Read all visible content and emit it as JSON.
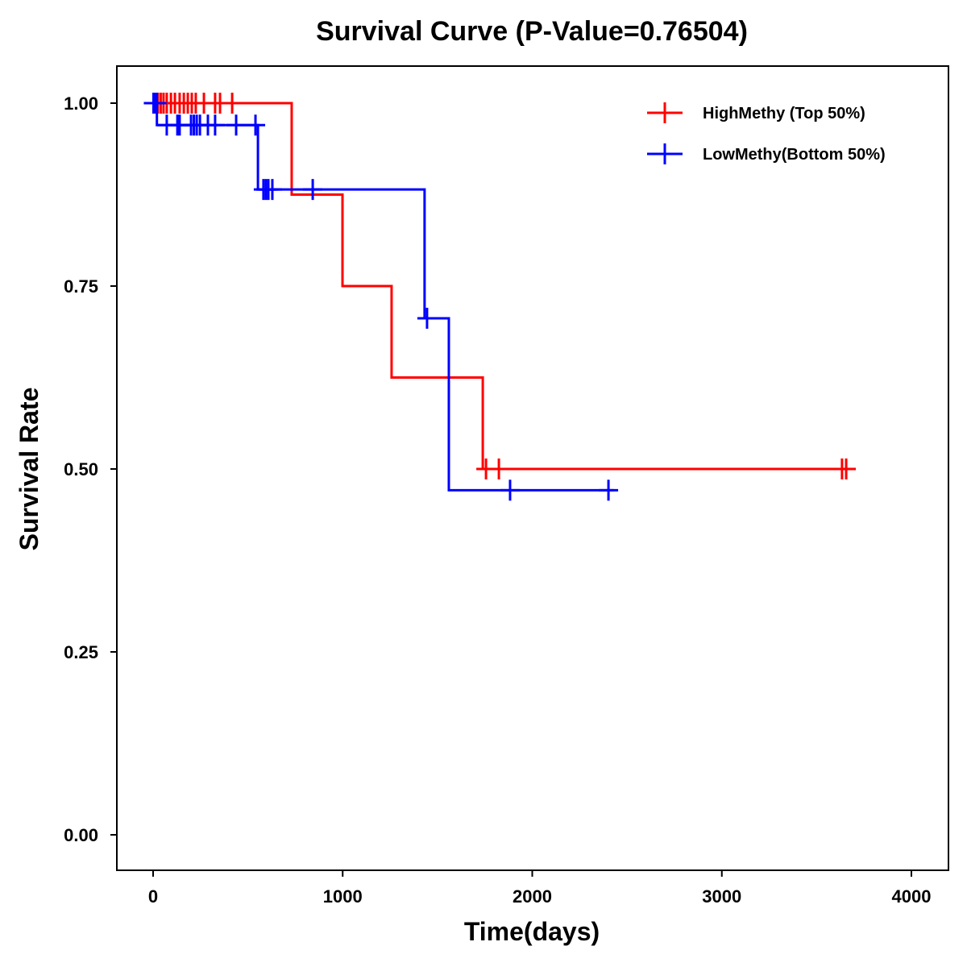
{
  "chart_data": {
    "type": "line",
    "subtype": "kaplan-meier",
    "title": "Survival Curve (P-Value=0.76504)",
    "xlabel": "Time(days)",
    "ylabel": "Survival Rate",
    "xlim": [
      -190,
      4200
    ],
    "ylim": [
      -0.05,
      1.04
    ],
    "xticks": [
      0,
      1000,
      2000,
      3000,
      4000
    ],
    "xtick_labels": [
      "0",
      "1000",
      "2000",
      "3000",
      "4000"
    ],
    "yticks": [
      0,
      0.25,
      0.5,
      0.75,
      1.0
    ],
    "ytick_labels": [
      "0.00",
      "0.25",
      "0.50",
      "0.75",
      "1.00"
    ],
    "grid": false,
    "legend_position": "top-right",
    "series": [
      {
        "name": "HighMethy (Top 50%)",
        "color": "#ff0000",
        "steps": [
          [
            0,
            1.0
          ],
          [
            731,
            0.875
          ],
          [
            999,
            0.75
          ],
          [
            1258,
            0.625
          ],
          [
            1739,
            0.5
          ]
        ],
        "end_time": 3690,
        "censor": [
          [
            5,
            1.0
          ],
          [
            15,
            1.0
          ],
          [
            25,
            1.0
          ],
          [
            40,
            1.0
          ],
          [
            55,
            1.0
          ],
          [
            72,
            1.0
          ],
          [
            94,
            1.0
          ],
          [
            115,
            1.0
          ],
          [
            140,
            1.0
          ],
          [
            162,
            1.0
          ],
          [
            183,
            1.0
          ],
          [
            204,
            1.0
          ],
          [
            225,
            1.0
          ],
          [
            268,
            1.0
          ],
          [
            327,
            1.0
          ],
          [
            353,
            1.0
          ],
          [
            417,
            1.0
          ],
          [
            1756,
            0.5
          ],
          [
            1824,
            0.5
          ],
          [
            3634,
            0.5
          ],
          [
            3656,
            0.5
          ]
        ]
      },
      {
        "name": "LowMethy(Bottom 50%)",
        "color": "#0000ff",
        "steps": [
          [
            0,
            1.0
          ],
          [
            20,
            0.97
          ],
          [
            553,
            0.882
          ],
          [
            1432,
            0.706
          ],
          [
            1560,
            0.471
          ]
        ],
        "end_time": 2430,
        "censor": [
          [
            2,
            1.0
          ],
          [
            8,
            1.0
          ],
          [
            14,
            1.0
          ],
          [
            20,
            1.0
          ],
          [
            72,
            0.97
          ],
          [
            128,
            0.97
          ],
          [
            140,
            0.97
          ],
          [
            200,
            0.97
          ],
          [
            215,
            0.97
          ],
          [
            230,
            0.97
          ],
          [
            247,
            0.97
          ],
          [
            289,
            0.97
          ],
          [
            327,
            0.97
          ],
          [
            438,
            0.97
          ],
          [
            540,
            0.97
          ],
          [
            582,
            0.882
          ],
          [
            595,
            0.882
          ],
          [
            608,
            0.882
          ],
          [
            629,
            0.882
          ],
          [
            842,
            0.882
          ],
          [
            1445,
            0.706
          ],
          [
            1883,
            0.471
          ],
          [
            2402,
            0.471
          ]
        ]
      }
    ]
  }
}
